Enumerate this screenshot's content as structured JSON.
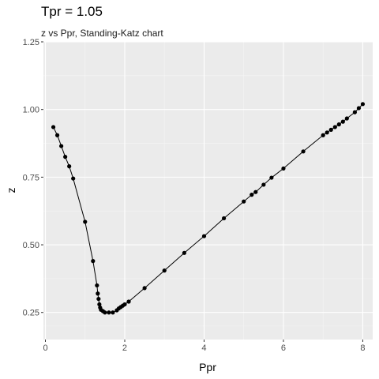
{
  "chart_data": {
    "type": "line",
    "title": "Tpr = 1.05",
    "subtitle": "z vs Ppr, Standing-Katz chart",
    "xlabel": "Ppr",
    "ylabel": "z",
    "xlim": [
      -0.05,
      8.25
    ],
    "ylim": [
      0.15,
      1.25
    ],
    "x_ticks": [
      0,
      2,
      4,
      6,
      8
    ],
    "x_tick_labels": [
      "0",
      "2",
      "4",
      "6",
      "8"
    ],
    "y_ticks": [
      0.25,
      0.5,
      0.75,
      1.0,
      1.25
    ],
    "y_tick_labels": [
      "0.25",
      "0.50",
      "0.75",
      "1.00",
      "1.25"
    ],
    "grid": true,
    "series": [
      {
        "color": "#000000",
        "x": [
          0.2,
          0.3,
          0.4,
          0.5,
          0.6,
          0.7,
          1.0,
          1.2,
          1.3,
          1.32,
          1.34,
          1.36,
          1.38,
          1.4,
          1.45,
          1.5,
          1.6,
          1.7,
          1.8,
          1.85,
          1.9,
          1.95,
          2.0,
          2.1,
          2.5,
          3.0,
          3.5,
          4.0,
          4.5,
          5.0,
          5.2,
          5.3,
          5.5,
          5.7,
          6.0,
          6.5,
          7.0,
          7.1,
          7.2,
          7.3,
          7.4,
          7.5,
          7.6,
          7.8,
          7.9,
          8.0
        ],
        "y": [
          0.935,
          0.905,
          0.865,
          0.825,
          0.79,
          0.745,
          0.585,
          0.44,
          0.35,
          0.32,
          0.3,
          0.28,
          0.268,
          0.26,
          0.255,
          0.25,
          0.25,
          0.25,
          0.258,
          0.265,
          0.27,
          0.275,
          0.28,
          0.29,
          0.34,
          0.405,
          0.47,
          0.532,
          0.598,
          0.66,
          0.685,
          0.695,
          0.722,
          0.748,
          0.782,
          0.845,
          0.905,
          0.915,
          0.925,
          0.935,
          0.945,
          0.955,
          0.967,
          0.99,
          1.005,
          1.02
        ]
      }
    ]
  }
}
